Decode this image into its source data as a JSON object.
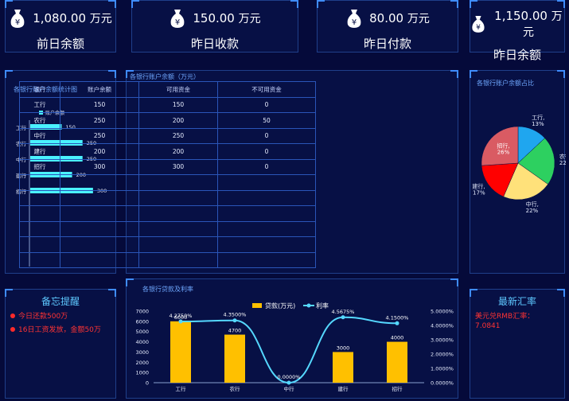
{
  "kpis": [
    {
      "value": "1,080.00",
      "unit": "万元",
      "label": "前日余额"
    },
    {
      "value": "150.00",
      "unit": "万元",
      "label": "昨日收款"
    },
    {
      "value": "80.00",
      "unit": "万元",
      "label": "昨日付款"
    },
    {
      "value": "1,150.00",
      "unit": "万元",
      "label": "昨日余额"
    }
  ],
  "colors": {
    "background": "#050a3a",
    "accent": "#3f8cff",
    "bar": "#4af2ff",
    "loan_bar": "#ffc000",
    "rate_line": "#55d8ff",
    "alert": "#ff3333"
  },
  "balance_chart": {
    "title": "各银行账户余额统计图",
    "chart_data": {
      "type": "bar",
      "orientation": "horizontal",
      "legend": "账户余额",
      "categories": [
        "工行",
        "农行",
        "中行",
        "建行",
        "招行"
      ],
      "values": [
        150,
        250,
        250,
        200,
        300
      ],
      "xlim": [
        0,
        350
      ]
    }
  },
  "account_table": {
    "title": "各银行账户余额（万元）",
    "headers": [
      "银行",
      "账户余额",
      "可用资金",
      "不可用资金"
    ],
    "rows": [
      [
        "工行",
        "150",
        "150",
        "0"
      ],
      [
        "农行",
        "250",
        "200",
        "50"
      ],
      [
        "中行",
        "250",
        "250",
        "0"
      ],
      [
        "建行",
        "200",
        "200",
        "0"
      ],
      [
        "招行",
        "300",
        "300",
        "0"
      ]
    ],
    "empty_rows": 6
  },
  "pie_chart": {
    "title": "各银行账户余额占比",
    "chart_data": {
      "type": "pie",
      "slices": [
        {
          "name": "工行",
          "label": "13%",
          "value": 150,
          "color": "#1fa6ef"
        },
        {
          "name": "农行",
          "label": "22%",
          "value": 250,
          "color": "#2dd060"
        },
        {
          "name": "中行",
          "label": "22%",
          "value": 250,
          "color": "#ffe17a"
        },
        {
          "name": "建行",
          "label": "17%",
          "value": 200,
          "color": "#ff0000"
        },
        {
          "name": "招行",
          "label": "26%",
          "value": 300,
          "color": "#d95b63"
        }
      ]
    }
  },
  "memo": {
    "title": "备忘提醒",
    "items": [
      "今日还款500万",
      "16日工资发放，金额50万"
    ]
  },
  "loan_chart": {
    "title": "各银行贷款及利率",
    "chart_data": {
      "type": "bar",
      "categories": [
        "工行",
        "农行",
        "中行",
        "建行",
        "招行"
      ],
      "series": [
        {
          "name": "贷款(万元)",
          "values": [
            6000,
            4700,
            0,
            3000,
            4000
          ],
          "labels": [
            "6000",
            "4700",
            "",
            "3000",
            "4000"
          ]
        },
        {
          "name": "利率",
          "values": [
            4.275,
            4.35,
            0.0,
            4.5675,
            4.15
          ],
          "labels": [
            "4.2750%",
            "4.3500%",
            "0.0000%",
            "4.5675%",
            "4.1500%"
          ]
        }
      ],
      "ylim_left": [
        0,
        7000
      ],
      "yticks_left": [
        "0",
        "1000",
        "2000",
        "3000",
        "4000",
        "5000",
        "6000",
        "7000"
      ],
      "ylim_right": [
        0,
        5
      ],
      "yticks_right": [
        "0.0000%",
        "1.0000%",
        "2.0000%",
        "3.0000%",
        "4.0000%",
        "5.0000%"
      ],
      "legend_placement": "top-center"
    }
  },
  "exchange": {
    "title": "最新汇率",
    "text": "美元兑RMB汇率：7.0841"
  }
}
